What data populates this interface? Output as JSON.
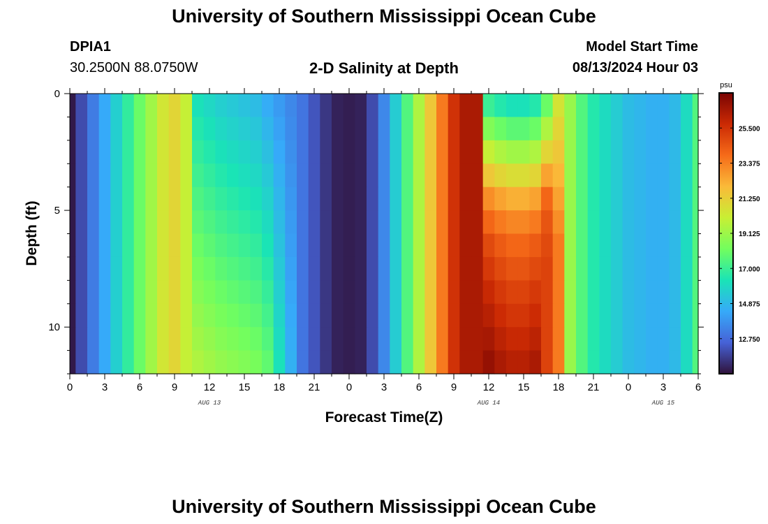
{
  "page": {
    "title": "University of Southern Mississippi Ocean Cube",
    "footer_title": "University of Southern Mississippi Ocean Cube"
  },
  "header": {
    "station": "DPIA1",
    "coordinates": "30.2500N  88.0750W",
    "plot_title": "2-D Salinity at Depth",
    "model_start_label": "Model Start Time",
    "model_start_value": "08/13/2024 Hour 03"
  },
  "chart_data": {
    "type": "heatmap",
    "title": "2-D Salinity at Depth",
    "xlabel": "Forecast Time(Z)",
    "ylabel": "Depth (ft)",
    "units": "psu",
    "x_hours_range": [
      0,
      54
    ],
    "y_range": [
      0,
      12
    ],
    "y_inverted": true,
    "x_tick_labels": [
      "0",
      "3",
      "6",
      "9",
      "12",
      "15",
      "18",
      "21",
      "0",
      "3",
      "6",
      "9",
      "12",
      "15",
      "18",
      "21",
      "0",
      "3",
      "6"
    ],
    "y_tick_labels": [
      "0",
      "5",
      "10"
    ],
    "y_tick_values": [
      0,
      5,
      10
    ],
    "date_labels": [
      {
        "label": "AUG 13",
        "hour": 12
      },
      {
        "label": "AUG 14",
        "hour": 36
      },
      {
        "label": "AUG 15",
        "hour": 51
      }
    ],
    "colorbar": {
      "units": "psu",
      "min": 10.625,
      "max": 27.625,
      "tick_labels": [
        "25.500",
        "23.375",
        "21.250",
        "19.125",
        "17.000",
        "14.875",
        "12.750"
      ],
      "tick_values": [
        25.5,
        23.375,
        21.25,
        19.125,
        17.0,
        14.875,
        12.75
      ],
      "colors": [
        "#30123b",
        "#4662d7",
        "#36aaf9",
        "#1ae4b6",
        "#72fe5e",
        "#c8ef34",
        "#faba39",
        "#f66b19",
        "#cb2a04",
        "#7a0403"
      ]
    },
    "depth_levels": [
      0,
      1,
      2,
      3,
      4,
      5,
      6,
      7,
      8,
      9,
      10,
      11
    ],
    "time_points_hours": [
      0,
      1,
      2,
      3,
      4,
      5,
      6,
      7,
      8,
      9,
      10,
      11,
      12,
      13,
      14,
      15,
      16,
      17,
      18,
      19,
      20,
      21,
      22,
      23,
      24,
      25,
      26,
      27,
      28,
      29,
      30,
      31,
      32,
      33,
      34,
      35,
      36,
      37,
      38,
      39,
      40,
      41,
      42,
      43,
      44,
      45,
      46,
      47,
      48,
      49,
      50,
      51,
      52,
      53,
      54
    ],
    "values": [
      [
        10.8,
        12.0,
        13.2,
        14.4,
        15.6,
        16.8,
        18.0,
        19.2,
        20.4,
        21.0,
        20.0,
        16.2,
        15.9,
        15.6,
        15.4,
        15.2,
        15.0,
        14.5,
        14.0,
        13.5,
        13.0,
        12.2,
        11.5,
        11.0,
        10.9,
        11.0,
        12.0,
        13.5,
        15.5,
        17.5,
        19.5,
        21.5,
        23.5,
        25.5,
        26.5,
        26.5,
        17.0,
        16.5,
        16.2,
        16.2,
        16.5,
        18.0,
        20.5,
        19.0,
        17.5,
        16.5,
        16.0,
        15.5,
        15.0,
        14.8,
        14.6,
        14.6,
        14.9,
        16.0,
        17.5
      ],
      [
        10.8,
        12.0,
        13.2,
        14.4,
        15.6,
        16.8,
        18.0,
        19.2,
        20.4,
        21.0,
        20.0,
        16.5,
        16.2,
        15.9,
        15.7,
        15.5,
        15.3,
        14.8,
        14.2,
        13.6,
        13.0,
        12.2,
        11.5,
        11.0,
        10.9,
        11.0,
        12.0,
        13.5,
        15.5,
        17.5,
        19.5,
        21.5,
        23.5,
        25.5,
        26.5,
        26.5,
        18.5,
        18.0,
        17.7,
        17.7,
        18.0,
        19.5,
        21.0,
        19.0,
        17.5,
        16.5,
        16.0,
        15.5,
        15.0,
        14.8,
        14.6,
        14.6,
        14.9,
        16.0,
        17.5
      ],
      [
        10.8,
        12.0,
        13.2,
        14.4,
        15.6,
        16.8,
        18.0,
        19.2,
        20.4,
        21.0,
        20.0,
        16.8,
        16.5,
        16.2,
        16.0,
        15.8,
        15.6,
        15.1,
        14.4,
        13.7,
        13.0,
        12.2,
        11.5,
        11.0,
        10.9,
        11.0,
        12.0,
        13.5,
        15.5,
        17.5,
        19.5,
        21.5,
        23.5,
        25.5,
        26.5,
        26.5,
        20.0,
        19.5,
        19.2,
        19.2,
        19.5,
        21.0,
        21.5,
        19.0,
        17.5,
        16.5,
        16.0,
        15.5,
        15.0,
        14.8,
        14.6,
        14.6,
        14.9,
        16.0,
        17.5
      ],
      [
        10.8,
        12.0,
        13.2,
        14.4,
        15.6,
        16.8,
        18.0,
        19.2,
        20.4,
        21.0,
        20.0,
        17.1,
        16.8,
        16.5,
        16.3,
        16.1,
        15.9,
        15.4,
        14.6,
        13.8,
        13.0,
        12.2,
        11.5,
        11.0,
        10.9,
        11.0,
        12.0,
        13.5,
        15.5,
        17.5,
        19.5,
        21.5,
        23.5,
        25.5,
        26.5,
        26.5,
        21.5,
        21.0,
        20.7,
        20.7,
        21.0,
        22.5,
        22.0,
        19.0,
        17.5,
        16.5,
        16.0,
        15.5,
        15.0,
        14.8,
        14.6,
        14.6,
        14.9,
        16.0,
        17.5
      ],
      [
        10.8,
        12.0,
        13.2,
        14.4,
        15.6,
        16.8,
        18.0,
        19.2,
        20.4,
        21.0,
        20.0,
        17.4,
        17.1,
        16.8,
        16.6,
        16.4,
        16.2,
        15.7,
        14.8,
        13.9,
        13.0,
        12.2,
        11.5,
        11.0,
        10.9,
        11.0,
        12.0,
        13.5,
        15.5,
        17.5,
        19.5,
        21.5,
        23.5,
        25.5,
        26.5,
        26.5,
        23.0,
        22.5,
        22.2,
        22.2,
        22.5,
        24.0,
        22.5,
        19.0,
        17.5,
        16.5,
        16.0,
        15.5,
        15.0,
        14.8,
        14.6,
        14.6,
        14.9,
        16.0,
        17.5
      ],
      [
        10.8,
        12.0,
        13.2,
        14.4,
        15.6,
        16.8,
        18.0,
        19.2,
        20.4,
        21.0,
        20.0,
        17.7,
        17.4,
        17.1,
        16.9,
        16.7,
        16.5,
        16.0,
        15.0,
        14.0,
        13.0,
        12.2,
        11.5,
        11.0,
        10.9,
        11.0,
        12.0,
        13.5,
        15.5,
        17.5,
        19.5,
        21.5,
        23.5,
        25.5,
        26.5,
        26.5,
        24.0,
        23.5,
        23.2,
        23.2,
        23.5,
        24.5,
        23.0,
        19.0,
        17.5,
        16.5,
        16.0,
        15.5,
        15.0,
        14.8,
        14.6,
        14.6,
        14.9,
        16.0,
        17.5
      ],
      [
        10.8,
        12.0,
        13.2,
        14.4,
        15.6,
        16.8,
        18.0,
        19.2,
        20.4,
        21.0,
        20.0,
        18.0,
        17.7,
        17.4,
        17.2,
        17.0,
        16.8,
        16.3,
        15.2,
        14.1,
        13.0,
        12.2,
        11.5,
        11.0,
        10.9,
        11.0,
        12.0,
        13.5,
        15.5,
        17.5,
        19.5,
        21.5,
        23.5,
        25.5,
        26.5,
        26.5,
        24.8,
        24.3,
        24.0,
        24.0,
        24.3,
        24.8,
        23.5,
        19.0,
        17.5,
        16.5,
        16.0,
        15.5,
        15.0,
        14.8,
        14.6,
        14.6,
        14.9,
        16.0,
        17.5
      ],
      [
        10.8,
        12.0,
        13.2,
        14.4,
        15.6,
        16.8,
        18.0,
        19.2,
        20.4,
        21.0,
        20.0,
        18.3,
        18.0,
        17.7,
        17.5,
        17.3,
        17.1,
        16.6,
        15.4,
        14.2,
        13.0,
        12.2,
        11.5,
        11.0,
        10.9,
        11.0,
        12.0,
        13.5,
        15.5,
        17.5,
        19.5,
        21.5,
        23.5,
        25.5,
        26.5,
        26.5,
        25.3,
        24.8,
        24.5,
        24.5,
        24.8,
        25.0,
        23.5,
        19.0,
        17.5,
        16.5,
        16.0,
        15.5,
        15.0,
        14.8,
        14.6,
        14.6,
        14.9,
        16.0,
        17.5
      ],
      [
        10.8,
        12.0,
        13.2,
        14.4,
        15.6,
        16.8,
        18.0,
        19.2,
        20.4,
        21.0,
        20.0,
        18.6,
        18.3,
        18.0,
        17.8,
        17.6,
        17.4,
        16.9,
        15.6,
        14.3,
        13.0,
        12.2,
        11.5,
        11.0,
        10.9,
        11.0,
        12.0,
        13.5,
        15.5,
        17.5,
        19.5,
        21.5,
        23.5,
        25.5,
        26.5,
        26.5,
        25.8,
        25.3,
        25.0,
        25.0,
        25.3,
        25.0,
        23.5,
        19.0,
        17.5,
        16.5,
        16.0,
        15.5,
        15.0,
        14.8,
        14.6,
        14.6,
        14.9,
        16.0,
        17.5
      ],
      [
        10.8,
        12.0,
        13.2,
        14.4,
        15.6,
        16.8,
        18.0,
        19.2,
        20.4,
        21.0,
        20.0,
        18.9,
        18.6,
        18.3,
        18.1,
        17.9,
        17.7,
        17.2,
        15.8,
        14.4,
        13.0,
        12.2,
        11.5,
        11.0,
        10.9,
        11.0,
        12.0,
        13.5,
        15.5,
        17.5,
        19.5,
        21.5,
        23.5,
        25.5,
        26.5,
        26.5,
        26.2,
        25.7,
        25.4,
        25.4,
        25.7,
        25.0,
        23.5,
        19.0,
        17.5,
        16.5,
        16.0,
        15.5,
        15.0,
        14.8,
        14.6,
        14.6,
        14.9,
        16.0,
        17.5
      ],
      [
        10.8,
        12.0,
        13.2,
        14.4,
        15.6,
        16.8,
        18.0,
        19.2,
        20.4,
        21.0,
        20.0,
        19.2,
        18.9,
        18.6,
        18.4,
        18.2,
        18.0,
        17.5,
        16.0,
        14.5,
        13.0,
        12.2,
        11.5,
        11.0,
        10.9,
        11.0,
        12.0,
        13.5,
        15.5,
        17.5,
        19.5,
        21.5,
        23.5,
        25.5,
        26.5,
        26.5,
        26.6,
        26.1,
        25.8,
        25.8,
        26.1,
        25.0,
        23.5,
        19.0,
        17.5,
        16.5,
        16.0,
        15.5,
        15.0,
        14.8,
        14.6,
        14.6,
        14.9,
        16.0,
        17.5
      ],
      [
        10.8,
        12.0,
        13.2,
        14.4,
        15.6,
        16.8,
        18.0,
        19.2,
        20.4,
        21.0,
        20.0,
        19.5,
        19.2,
        18.9,
        18.7,
        18.5,
        18.3,
        17.8,
        16.2,
        14.6,
        13.0,
        12.2,
        11.5,
        11.0,
        10.9,
        11.0,
        12.0,
        13.5,
        15.5,
        17.5,
        19.5,
        21.5,
        23.5,
        25.5,
        26.5,
        26.5,
        27.0,
        26.5,
        26.2,
        26.2,
        26.5,
        25.0,
        23.5,
        19.0,
        17.5,
        16.5,
        16.0,
        15.5,
        15.0,
        14.8,
        14.6,
        14.6,
        14.9,
        16.0,
        17.5
      ]
    ]
  }
}
